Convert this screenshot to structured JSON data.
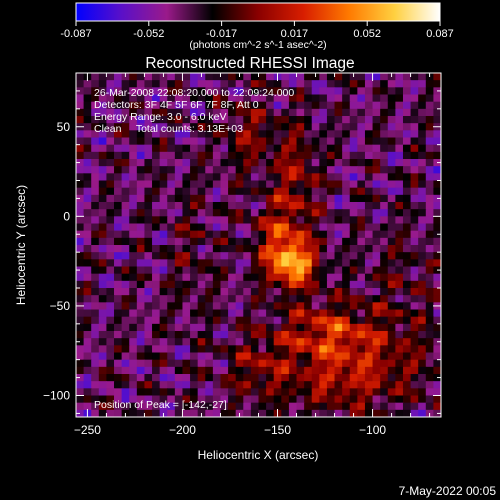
{
  "chart_data": {
    "type": "heatmap",
    "title": "Reconstructed RHESSI Image",
    "xlabel": "Heliocentric X (arcsec)",
    "ylabel": "Heliocentric Y (arcsec)",
    "xlim": [
      -256,
      -64
    ],
    "ylim": [
      -112,
      80
    ],
    "x_ticks": [
      -250,
      -200,
      -150,
      -100
    ],
    "y_ticks": [
      -100,
      -50,
      0,
      50
    ],
    "colorbar": {
      "min": -0.087,
      "max": 0.087,
      "ticks": [
        "-0.087",
        "-0.052",
        "-0.017",
        "0.017",
        "0.052",
        "0.087"
      ],
      "unit_label": "(photons cm^-2 s^-1 asec^-2)",
      "stops": [
        "#0000ff",
        "#5a10c8",
        "#9a1a8a",
        "#000000",
        "#8a0000",
        "#d81e00",
        "#ff7a00",
        "#ffd040",
        "#ffffff"
      ]
    },
    "annotations": [
      "26-Mar-2008 22:08:20.000 to 22:09:24.000",
      "Detectors: 3F 4F 5F 6F 7F 8F, Att 0",
      "Energy Range: 3.0 - 6.0 keV",
      "Clean     Total counts: 3.13E+03"
    ],
    "peak_label": "Position of Peak = [-142,-27]",
    "peak": [
      -142,
      -27
    ],
    "sources": [
      {
        "x": -142,
        "y": -27,
        "amp": 0.08,
        "sx": 9,
        "sy": 9
      },
      {
        "x": -148,
        "y": -10,
        "amp": 0.045,
        "sx": 10,
        "sy": 14
      },
      {
        "x": -140,
        "y": 25,
        "amp": 0.035,
        "sx": 8,
        "sy": 18
      },
      {
        "x": -165,
        "y": 45,
        "amp": 0.03,
        "sx": 10,
        "sy": 14
      },
      {
        "x": -125,
        "y": -65,
        "amp": 0.045,
        "sx": 18,
        "sy": 12
      },
      {
        "x": -100,
        "y": -80,
        "amp": 0.03,
        "sx": 25,
        "sy": 16
      },
      {
        "x": -160,
        "y": -85,
        "amp": 0.03,
        "sx": 12,
        "sy": 12
      },
      {
        "x": -120,
        "y": -95,
        "amp": 0.025,
        "sx": 20,
        "sy": 10
      },
      {
        "x": -195,
        "y": -20,
        "amp": 0.015,
        "sx": 8,
        "sy": 25
      },
      {
        "x": -85,
        "y": -35,
        "amp": 0.015,
        "sx": 12,
        "sy": 20
      }
    ],
    "background_level": -0.035
  },
  "footer": {
    "date": "7-May-2022 00:05"
  }
}
